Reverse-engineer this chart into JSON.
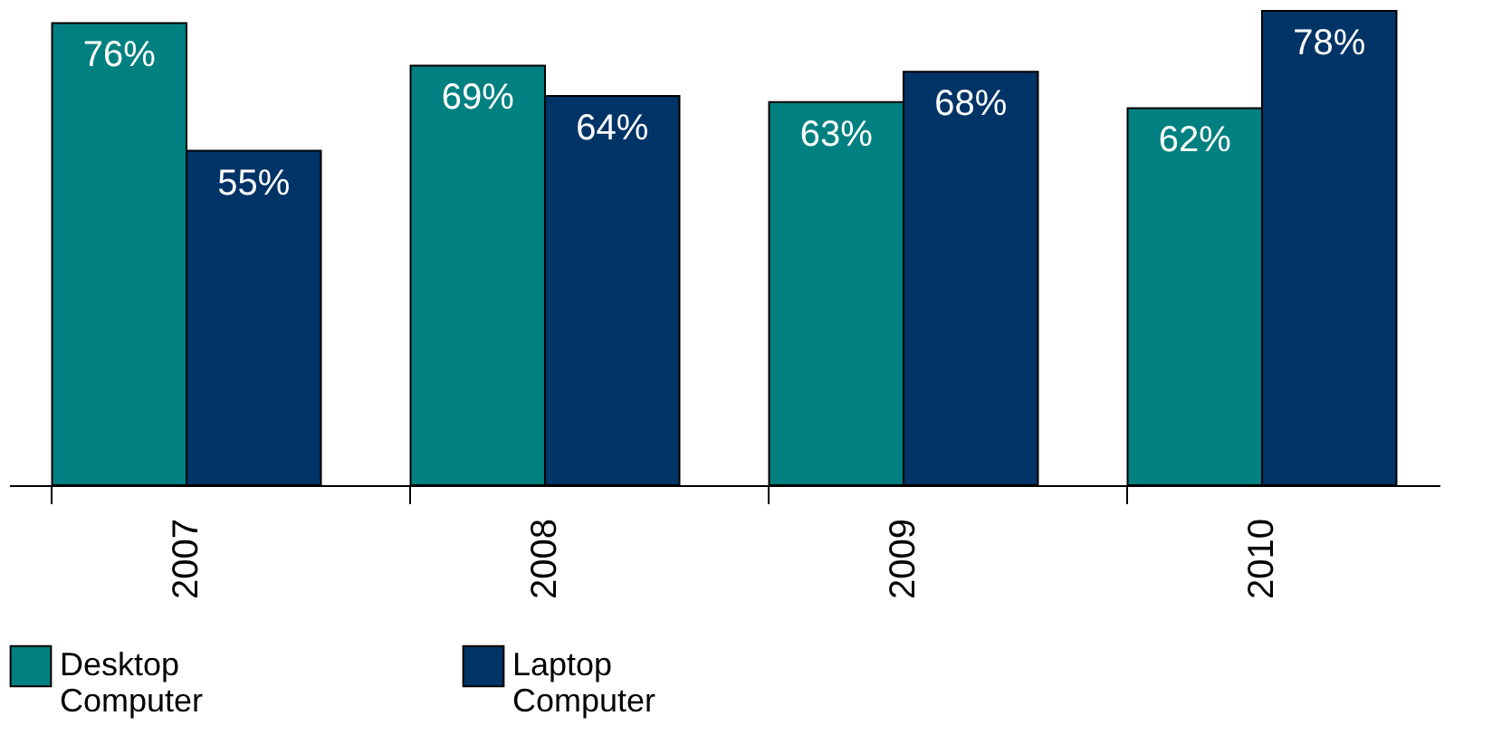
{
  "chart_data": {
    "type": "bar",
    "categories": [
      "2007",
      "2008",
      "2009",
      "2010"
    ],
    "series": [
      {
        "name": "Desktop Computer",
        "color": "#008080",
        "values": [
          76,
          69,
          63,
          62
        ],
        "value_labels": [
          "76%",
          "69%",
          "63%",
          "62%"
        ]
      },
      {
        "name": "Laptop Computer",
        "color": "#003366",
        "values": [
          55,
          64,
          68,
          78
        ],
        "value_labels": [
          "55%",
          "64%",
          "68%",
          "78%"
        ]
      }
    ],
    "legend": "bottom",
    "grid": false,
    "tick_labels": "x"
  }
}
